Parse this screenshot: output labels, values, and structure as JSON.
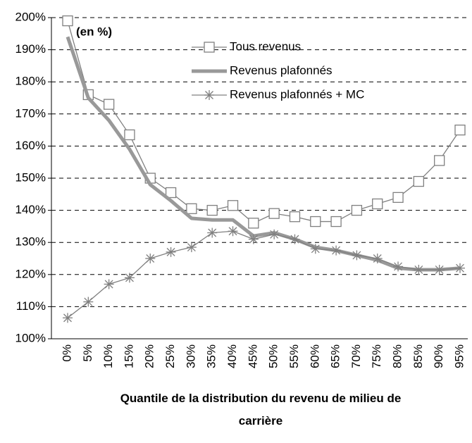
{
  "chart_data": {
    "type": "line",
    "annotation": "(en %)",
    "x_label": "Quantile de la distribution du revenu de milieu de carrière",
    "categories": [
      "0%",
      "5%",
      "10%",
      "15%",
      "20%",
      "25%",
      "30%",
      "35%",
      "40%",
      "45%",
      "50%",
      "55%",
      "60%",
      "65%",
      "70%",
      "75%",
      "80%",
      "85%",
      "90%",
      "95%"
    ],
    "series": [
      {
        "name": "Tous revenus",
        "color": "#808080",
        "marker": "square",
        "values": [
          199,
          176,
          173,
          163.5,
          150,
          145.5,
          140.5,
          140,
          141.5,
          136,
          139,
          138,
          136.5,
          136.5,
          140,
          142,
          144,
          149,
          155.5,
          165
        ]
      },
      {
        "name": "Revenus plafonnés",
        "color": "#999999",
        "marker": "none",
        "values": [
          194,
          175,
          168,
          159,
          148,
          143,
          137.5,
          137,
          137,
          132,
          133,
          131,
          128.5,
          127.5,
          126,
          124.5,
          122,
          121.5,
          121.5,
          122
        ]
      },
      {
        "name": "Revenus plafonnés + MC",
        "color": "#808080",
        "marker": "star",
        "values": [
          106.5,
          111.5,
          117,
          119,
          125,
          127,
          128.5,
          133,
          133.5,
          131,
          132.5,
          131,
          128,
          127.5,
          126,
          125,
          122.5,
          121.5,
          121.5,
          122
        ]
      }
    ],
    "ylim": [
      100,
      200
    ],
    "yticks": [
      {
        "value": 100,
        "label": "100%"
      },
      {
        "value": 110,
        "label": "110%"
      },
      {
        "value": 120,
        "label": "120%"
      },
      {
        "value": 130,
        "label": "130%"
      },
      {
        "value": 140,
        "label": "140%"
      },
      {
        "value": 150,
        "label": "150%"
      },
      {
        "value": 160,
        "label": "160%"
      },
      {
        "value": 170,
        "label": "170%"
      },
      {
        "value": 180,
        "label": "180%"
      },
      {
        "value": 190,
        "label": "190%"
      },
      {
        "value": 200,
        "label": "200%"
      }
    ],
    "grid": true
  }
}
